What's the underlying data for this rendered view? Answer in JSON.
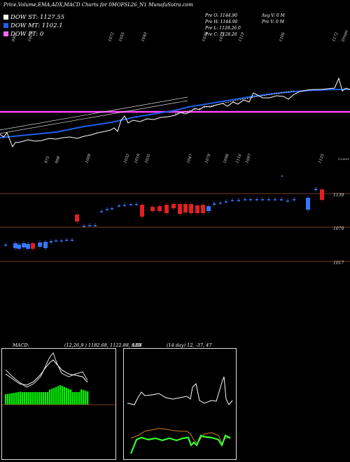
{
  "header": {
    "title": "Price,Volume,EMA,ADX,MACD Charts for 0MOFSL26_N1 MunafaSutra.com"
  },
  "legend": [
    {
      "label": "DOW ST: 1127.55",
      "color": "#ffffff"
    },
    {
      "label": "DOW MT: 1102.1",
      "color": "#1f5fe8"
    },
    {
      "label": "DOW PT: 0",
      "color": "#ff66ff"
    }
  ],
  "stats": {
    "open": "Pre   O: 1144.90",
    "high": "Pre   H: 1144.90",
    "low": "Pre   L: 1128.26  0",
    "close": "Pre   C: 1128.26",
    "avg_vol": "Avg V: 0   M",
    "pre_vol": "Pre   V: 0   M"
  },
  "colors": {
    "price": "#ffffff",
    "ema_short": "#1f5fe8",
    "ema_long": "#ff44ff",
    "up_candle": "#e02020",
    "down_candle": "#3377ff",
    "divider": "#a0522d",
    "volume": "#00ee00"
  },
  "chart_data": [
    {
      "type": "line",
      "name": "price-ema-panel",
      "top_labels": [
        "990",
        "1007",
        "1072",
        "1055",
        "1040",
        "1035",
        "1018",
        "1119",
        "1106",
        "1172",
        "Dropn"
      ],
      "bottom_labels": [
        "975",
        "998",
        "1009",
        "1032",
        "1019",
        "1035",
        "1047",
        "1079",
        "1098",
        "1116",
        "1097",
        "1125"
      ],
      "right_label": "Lowes",
      "series": [
        {
          "name": "DOW ST",
          "values": [
            1127.55
          ]
        },
        {
          "name": "DOW MT",
          "values": [
            1102.1
          ]
        },
        {
          "name": "DOW PT",
          "values": [
            0
          ]
        }
      ]
    },
    {
      "type": "candlestick",
      "name": "candle-panel",
      "price_labels": [
        "1139",
        "1079",
        "1017"
      ]
    },
    {
      "type": "line",
      "name": "macd-panel",
      "title": "MACD:",
      "params_text": "(12,26,9 ) 1182.68,  1122.88,  9.88"
    },
    {
      "type": "line",
      "name": "adx-panel",
      "title": "ADX",
      "params_text": "(14  day) 12,  -37,  47"
    }
  ]
}
